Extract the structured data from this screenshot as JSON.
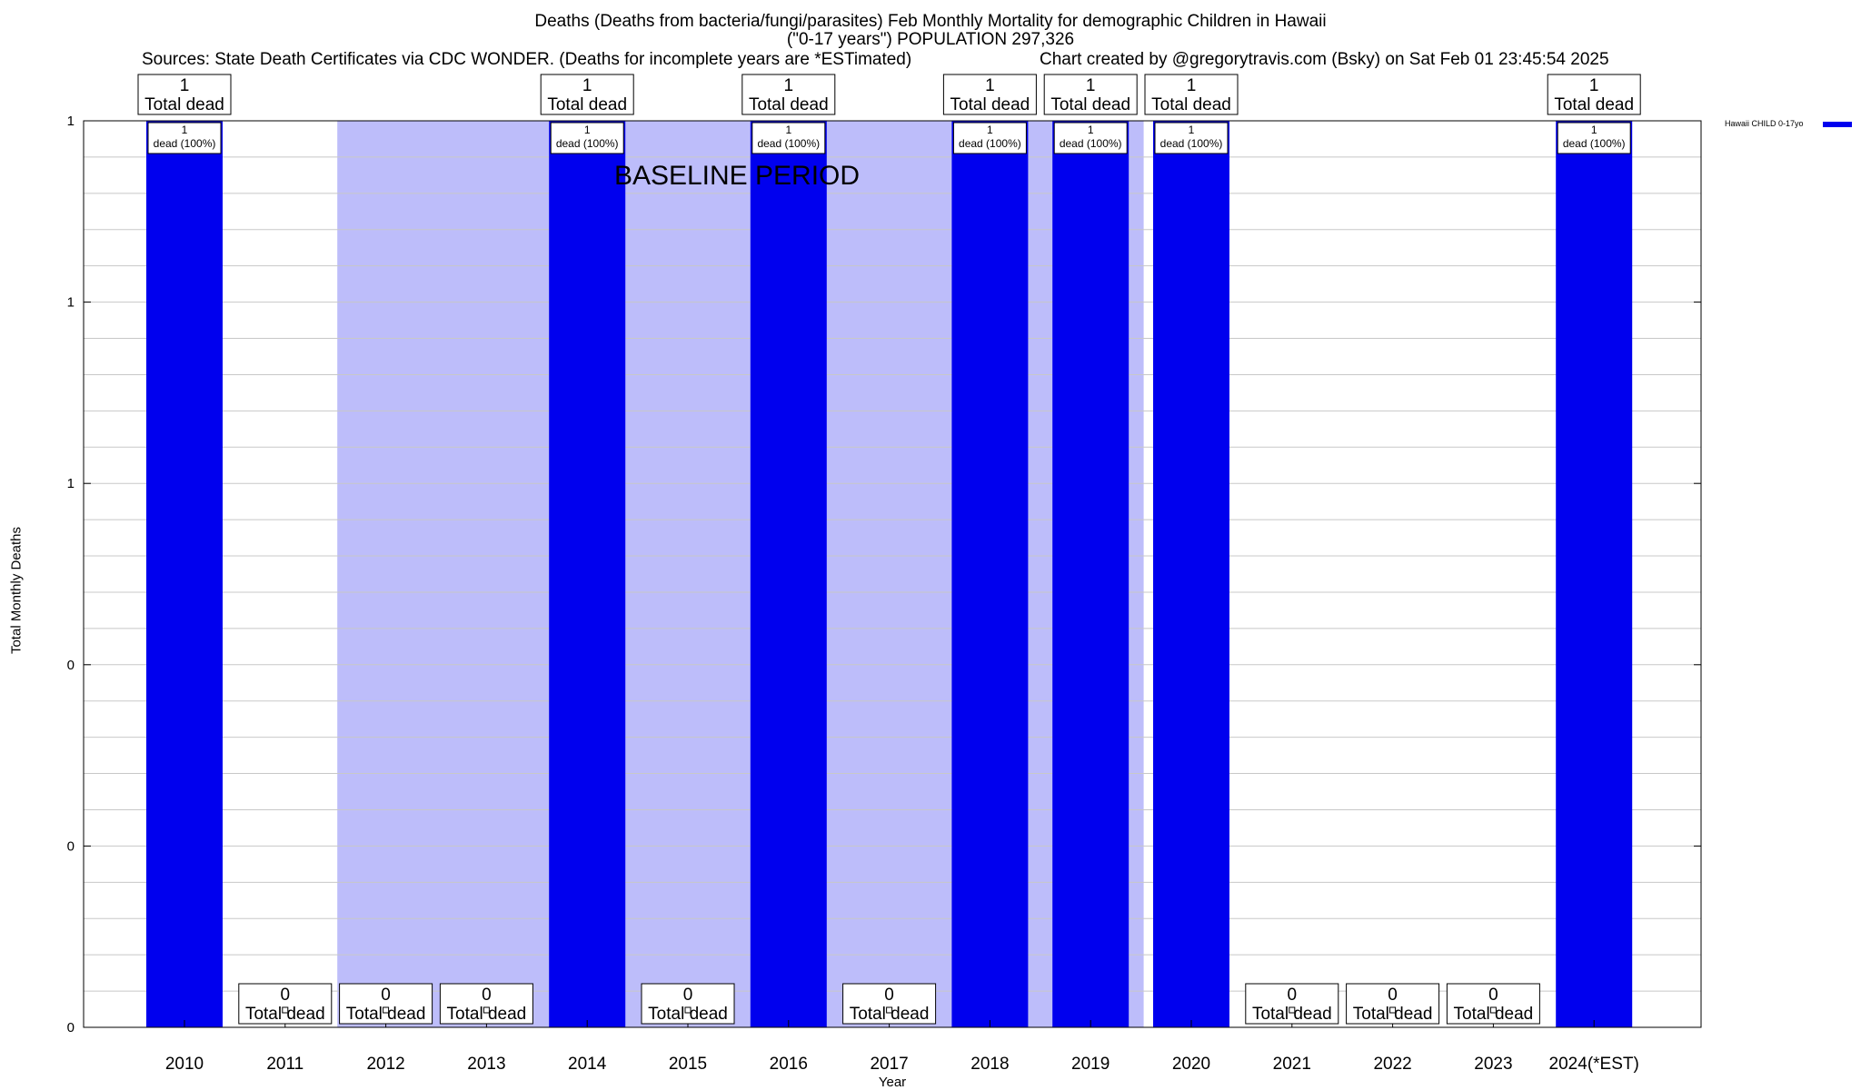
{
  "title_line1": "Deaths (Deaths from bacteria/fungi/parasites) Feb Monthly Mortality for demographic Children in Hawaii",
  "title_line2": "(\"0-17 years\") POPULATION 297,326",
  "sources": "Sources: State Death Certificates via CDC WONDER. (Deaths for incomplete years are *ESTimated)",
  "credit": "Chart created by @gregorytravis.com (Bsky) on Sat Feb 01 23:45:54 2025",
  "baseline_label": "BASELINE PERIOD",
  "legend_label": "Hawaii CHILD 0-17yo",
  "colors": {
    "bar": "#0000ee",
    "baseline": "#bdbdfa",
    "grid": "#c8c8c8"
  },
  "chart_data": {
    "type": "bar",
    "title": "Deaths (Deaths from bacteria/fungi/parasites) Feb Monthly Mortality for demographic Children in Hawaii",
    "xlabel": "Year",
    "ylabel": "Total Monthly Deaths",
    "categories": [
      "2010",
      "2011",
      "2012",
      "2013",
      "2014",
      "2015",
      "2016",
      "2017",
      "2018",
      "2019",
      "2020",
      "2021",
      "2022",
      "2023",
      "2024(*EST)"
    ],
    "series": [
      {
        "name": "Hawaii CHILD 0-17yo",
        "values": [
          1,
          0,
          0,
          0,
          1,
          0,
          1,
          0,
          1,
          1,
          1,
          0,
          0,
          0,
          1
        ]
      }
    ],
    "total_label_suffix": "Total dead",
    "pct_label_suffix": "dead (100%)",
    "ylim": [
      0,
      1
    ],
    "ytick_labels": [
      "0",
      "0",
      "0",
      "1",
      "1",
      "1"
    ],
    "grid": true,
    "legend_position": "top-right",
    "baseline_period": [
      "2012",
      "2019"
    ]
  }
}
